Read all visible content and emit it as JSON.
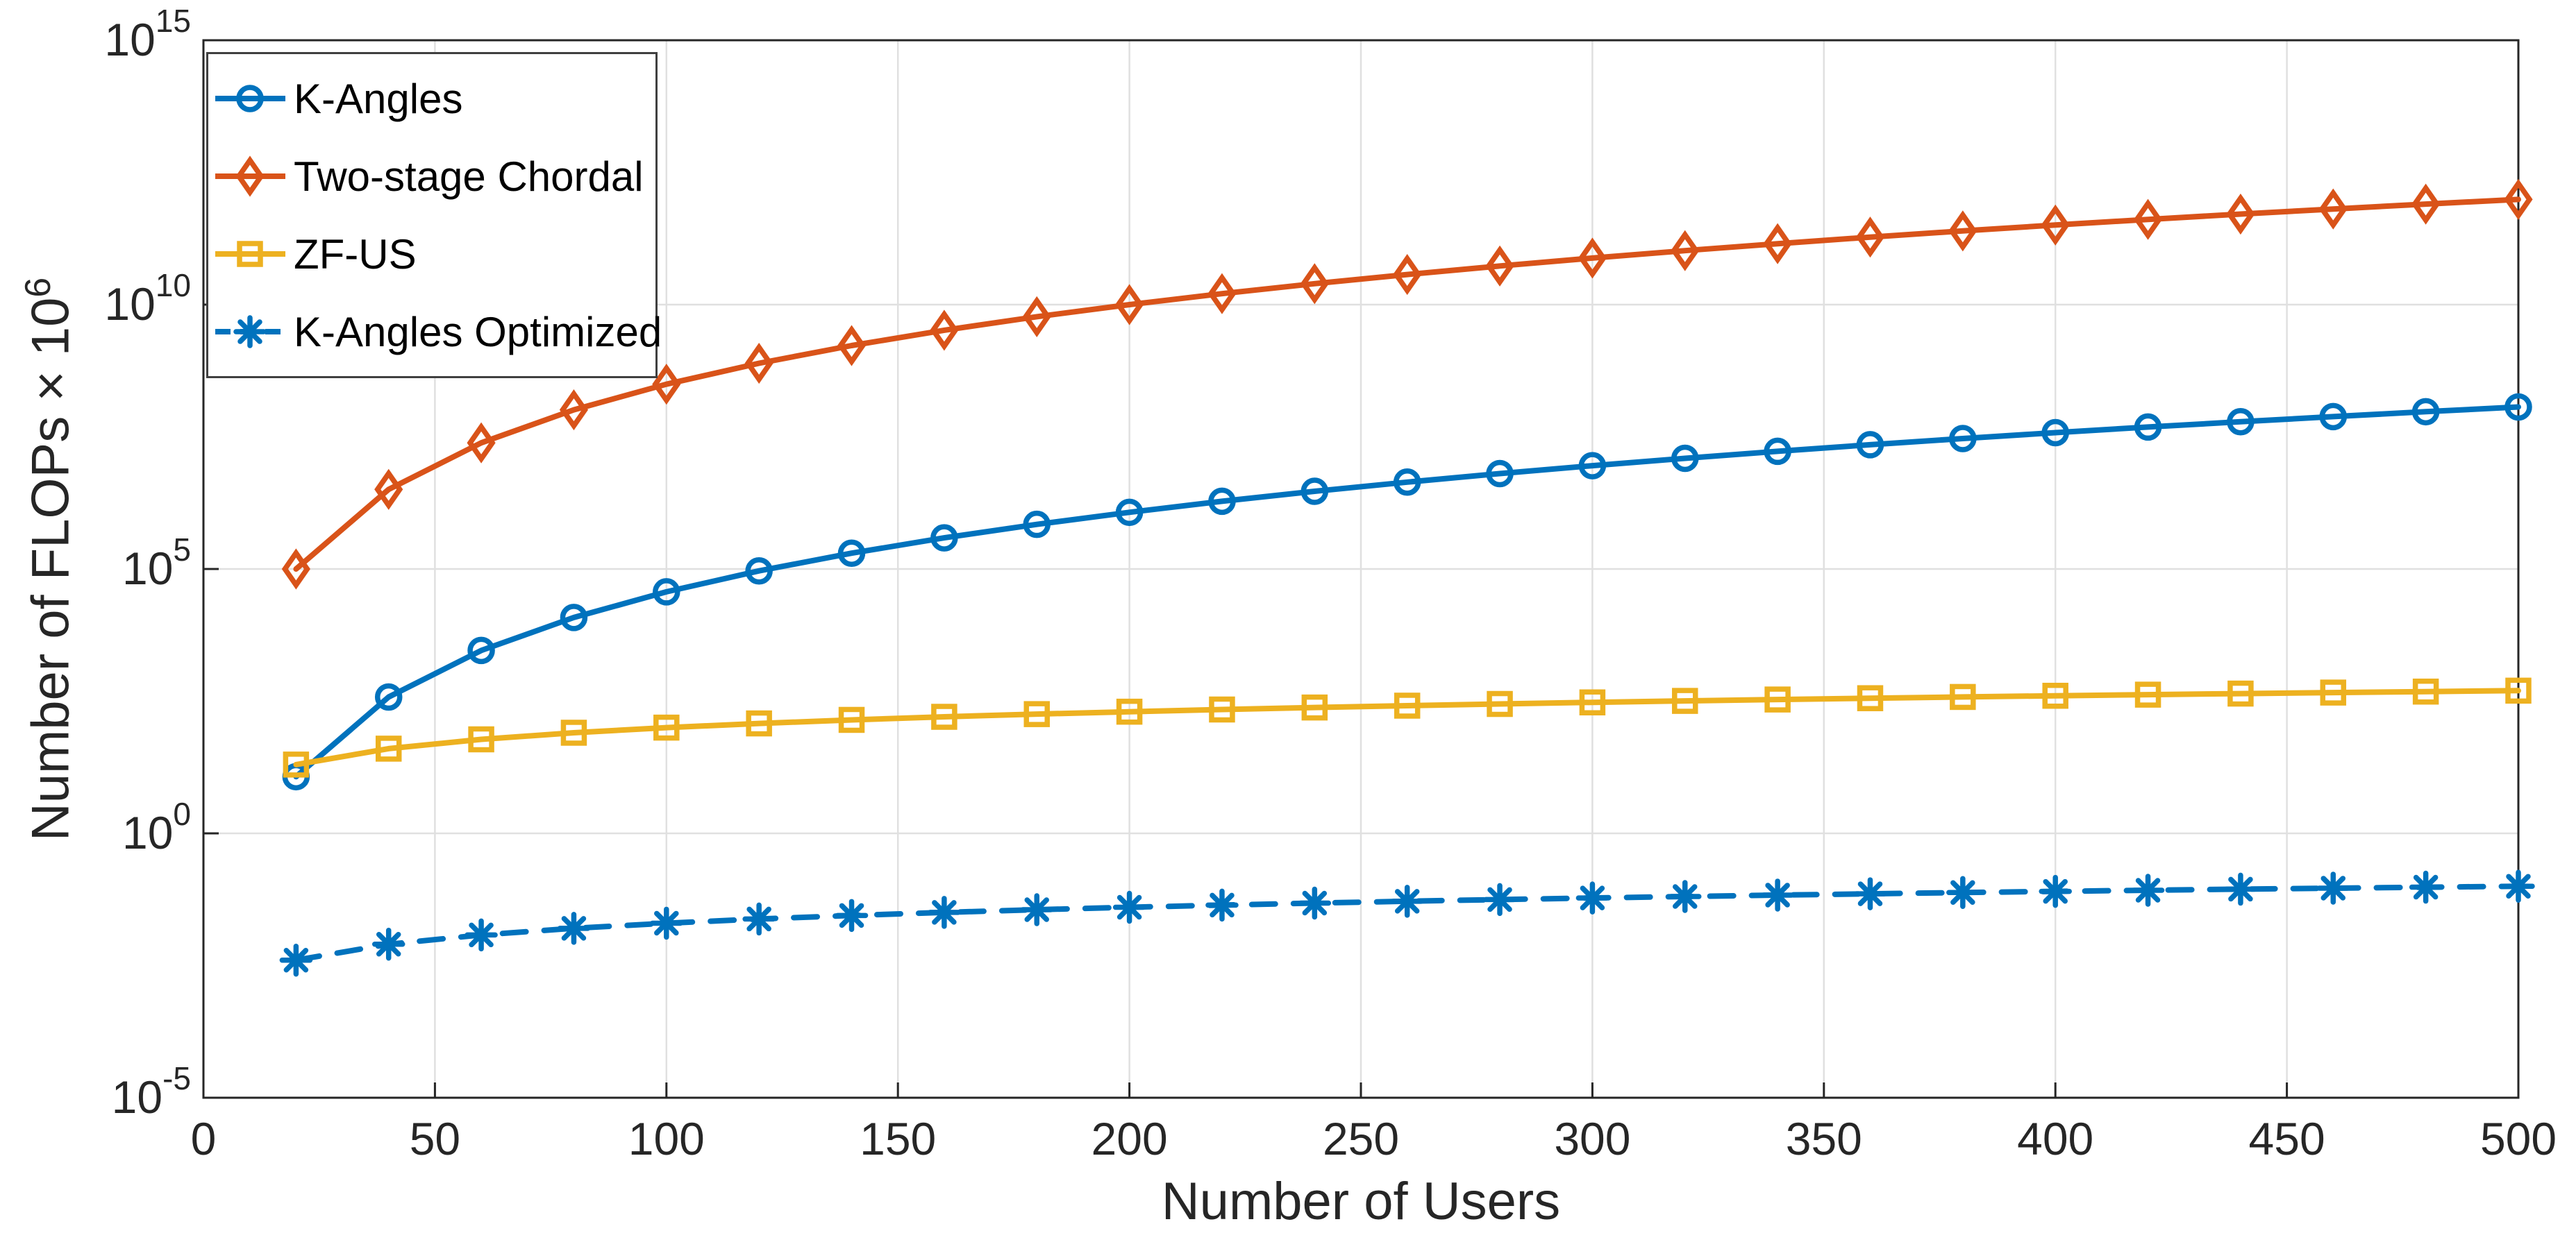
{
  "axes": {
    "xlabel": "Number of Users",
    "ylabel_main": "Number of FLOPs × 10",
    "ylabel_sup": "6"
  },
  "chart_data": {
    "type": "line",
    "title": "",
    "xlabel": "Number of Users",
    "ylabel": "Number of FLOPs × 10^6",
    "grid": true,
    "legend_position": "top-left",
    "axis_color": "#262626",
    "grid_color": "#e0e0e0",
    "xlim": [
      0,
      500
    ],
    "ylim_log10": [
      -5,
      15
    ],
    "x_ticks": [
      0,
      50,
      100,
      150,
      200,
      250,
      300,
      350,
      400,
      450,
      500
    ],
    "y_tick_exponents": [
      -5,
      0,
      5,
      10,
      15
    ],
    "x": [
      20,
      40,
      60,
      80,
      100,
      120,
      140,
      160,
      180,
      200,
      220,
      240,
      260,
      280,
      300,
      320,
      340,
      360,
      380,
      400,
      420,
      440,
      460,
      480,
      500
    ],
    "series": [
      {
        "name": "K-Angles",
        "color": "#0072BD",
        "marker": "circle",
        "line": "solid",
        "values": [
          11.8,
          379,
          2880,
          12100,
          37000,
          92100,
          199000,
          388000,
          699000,
          1180000,
          1910000,
          2950000,
          4400000,
          6370000,
          8990000,
          12400000,
          16800000,
          22400000,
          29300000,
          37900000,
          48400000,
          61000000,
          76200000,
          94300000,
          116000000
        ]
      },
      {
        "name": "Two-stage Chordal",
        "color": "#D95319",
        "marker": "diamond",
        "line": "solid",
        "values": [
          100000.0,
          3200000.0,
          24300000.0,
          102400000.0,
          312500000.0,
          777600000.0,
          1681000000.0,
          3277000000.0,
          5905000000.0,
          10000000000.0,
          16110000000.0,
          24880000000.0,
          37130000000.0,
          53780000000.0,
          75940000000.0,
          104900000000.0,
          142000000000.0,
          189000000000.0,
          247600000000.0,
          320000000000.0,
          408400000000.0,
          515400000000.0,
          643500000000.0,
          796300000000.0,
          976600000000.0
        ]
      },
      {
        "name": "ZF-US",
        "color": "#EDB120",
        "marker": "square",
        "line": "solid",
        "values": [
          20,
          40,
          60,
          80,
          100,
          120,
          140,
          160,
          180,
          200,
          220,
          240,
          260,
          280,
          300,
          320,
          340,
          360,
          380,
          400,
          420,
          440,
          460,
          480,
          500
        ]
      },
      {
        "name": "K-Angles Optimized",
        "color": "#0072BD",
        "marker": "asterisk",
        "line": "dashed",
        "values": [
          0.004,
          0.008,
          0.012,
          0.016,
          0.02,
          0.024,
          0.028,
          0.032,
          0.036,
          0.04,
          0.044,
          0.048,
          0.052,
          0.056,
          0.06,
          0.064,
          0.068,
          0.072,
          0.076,
          0.08,
          0.084,
          0.088,
          0.092,
          0.096,
          0.1
        ]
      }
    ]
  }
}
